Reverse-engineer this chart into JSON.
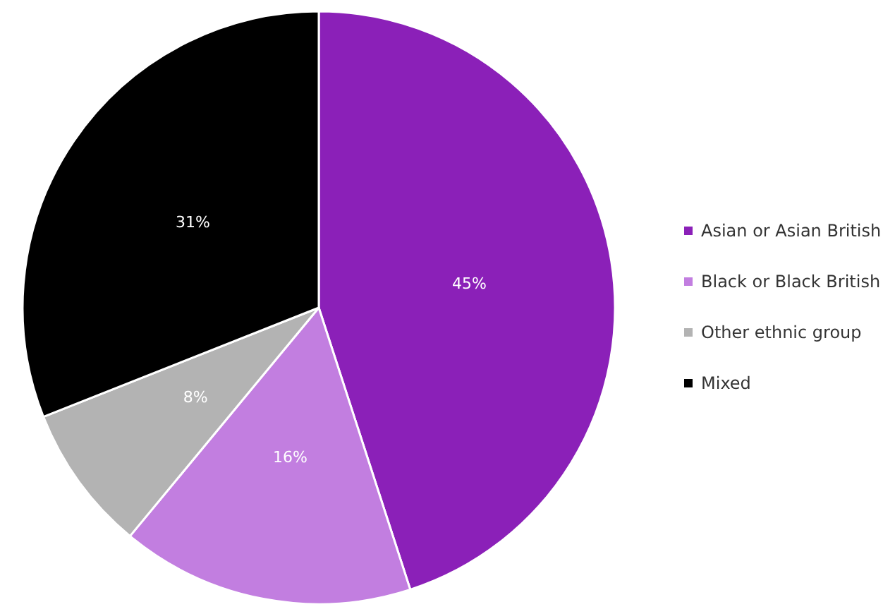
{
  "chart_data": {
    "type": "pie",
    "categories": [
      "Asian or Asian British",
      "Black or Black British",
      "Other ethnic group",
      "Mixed"
    ],
    "values": [
      45,
      16,
      8,
      31
    ],
    "colors": [
      "#8b20b8",
      "#c27ee0",
      "#b3b3b3",
      "#000000"
    ],
    "value_labels": [
      "45%",
      "16%",
      "8%",
      "31%"
    ],
    "legend": "right"
  }
}
